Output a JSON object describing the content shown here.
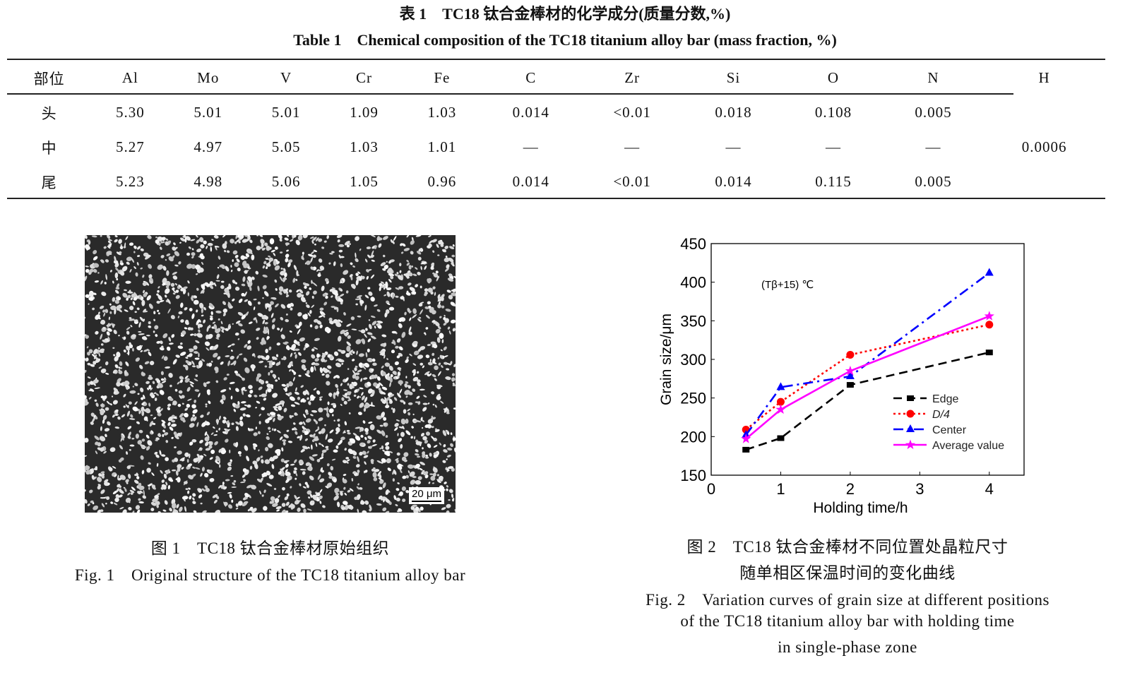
{
  "table": {
    "caption_cn": "表 1　TC18 钛合金棒材的化学成分(质量分数,%)",
    "caption_en": "Table 1　Chemical composition of the TC18 titanium alloy bar (mass fraction, %)",
    "headers": [
      "部位",
      "Al",
      "Mo",
      "V",
      "Cr",
      "Fe",
      "C",
      "Zr",
      "Si",
      "O",
      "N",
      "H"
    ],
    "rows": [
      [
        "头",
        "5.30",
        "5.01",
        "5.01",
        "1.09",
        "1.03",
        "0.014",
        "<0.01",
        "0.018",
        "0.108",
        "0.005"
      ],
      [
        "中",
        "5.27",
        "4.97",
        "5.05",
        "1.03",
        "1.01",
        "—",
        "—",
        "—",
        "—",
        "—"
      ],
      [
        "尾",
        "5.23",
        "4.98",
        "5.06",
        "1.05",
        "0.96",
        "0.014",
        "<0.01",
        "0.014",
        "0.115",
        "0.005"
      ]
    ],
    "h_value": "0.0006"
  },
  "figure1": {
    "scale_bar": "20 μm",
    "caption_cn": "图 1　TC18 钛合金棒材原始组织",
    "caption_en": "Fig. 1　Original structure of the TC18 titanium alloy bar"
  },
  "figure2": {
    "caption_cn_1": "图 2　TC18 钛合金棒材不同位置处晶粒尺寸",
    "caption_cn_2": "随单相区保温时间的变化曲线",
    "caption_en_1": "Fig. 2　Variation curves of grain size at different positions",
    "caption_en_2": "of the TC18 titanium alloy bar with holding time",
    "caption_en_3": "in single-phase zone"
  },
  "chart_data": {
    "type": "line",
    "xlabel": "Holding time/h",
    "ylabel": "Grain size/μm",
    "annotation": "(Tβ+15) ℃",
    "xlim": [
      0,
      4.5
    ],
    "ylim": [
      150,
      450
    ],
    "xticks": [
      "0",
      "1",
      "2",
      "3",
      "4"
    ],
    "yticks": [
      "150",
      "200",
      "250",
      "300",
      "350",
      "400",
      "450"
    ],
    "grid": false,
    "legend_position": "lower-right",
    "x": [
      0.5,
      1,
      2,
      4
    ],
    "series": [
      {
        "name": "Edge",
        "values": [
          183,
          198,
          267,
          309
        ],
        "color": "#000000",
        "marker": "square",
        "dash": "dashed"
      },
      {
        "name": "D/4",
        "values": [
          209,
          245,
          306,
          345
        ],
        "color": "#ff0000",
        "marker": "circle",
        "dash": "dotted"
      },
      {
        "name": "Center",
        "values": [
          202,
          264,
          278,
          412
        ],
        "color": "#0000ff",
        "marker": "triangle",
        "dash": "dashdot"
      },
      {
        "name": "Average value",
        "values": [
          197,
          235,
          285,
          356
        ],
        "color": "#ff00ff",
        "marker": "star",
        "dash": "solid"
      }
    ]
  }
}
